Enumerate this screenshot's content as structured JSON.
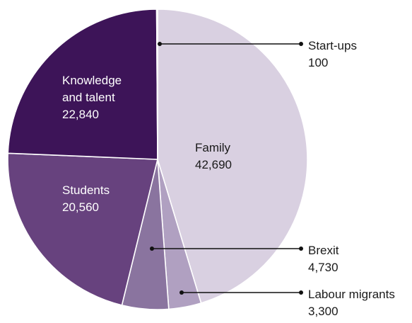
{
  "chart_data": {
    "type": "pie",
    "slices": [
      {
        "label": "Family",
        "value": 42690,
        "value_text": "42,690",
        "color": "#d9d0e1",
        "label_style": "inside",
        "text_color": "dark"
      },
      {
        "label": "Labour migrants",
        "value": 3300,
        "value_text": "3,300",
        "color": "#b0a0c1",
        "label_style": "outside",
        "text_color": "dark"
      },
      {
        "label": "Brexit",
        "value": 4730,
        "value_text": "4,730",
        "color": "#8a749f",
        "label_style": "outside",
        "text_color": "dark"
      },
      {
        "label": "Students",
        "value": 20560,
        "value_text": "20,560",
        "color": "#67427e",
        "label_style": "inside",
        "text_color": "light"
      },
      {
        "label": "Knowledge and talent",
        "label_lines": [
          "Knowledge",
          "and talent"
        ],
        "value": 22840,
        "value_text": "22,840",
        "color": "#3d1458",
        "label_style": "inside",
        "text_color": "light"
      },
      {
        "label": "Start-ups",
        "value": 100,
        "value_text": "100",
        "color": "#4a2266",
        "label_style": "outside",
        "text_color": "dark"
      }
    ],
    "start_angle_deg": 0,
    "direction": "clockwise",
    "separator_color": "#ffffff"
  }
}
